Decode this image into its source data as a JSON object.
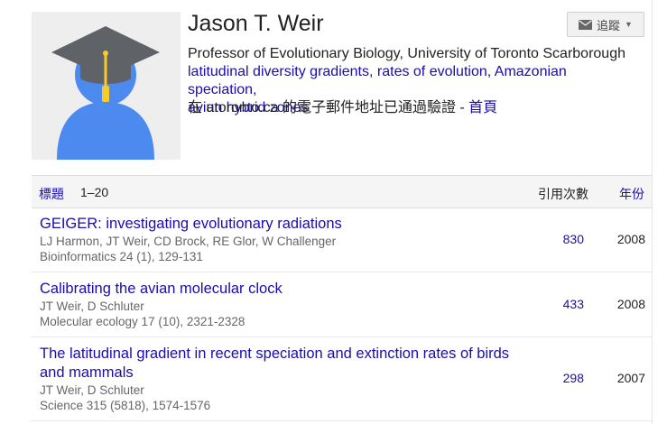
{
  "profile": {
    "name": "Jason T. Weir",
    "affiliation": "Professor of Evolutionary Biology, University of Toronto Scarborough",
    "interests": [
      "latitudinal diversity gradients",
      "rates of evolution",
      "Amazonian speciation",
      "avian hybrid zones"
    ],
    "interest_sep": ", ",
    "verified_text": "在 utoronto.ca 的電子郵件地址已通過驗證 - ",
    "homepage_label": "首頁",
    "follow_label": "追蹤"
  },
  "table": {
    "title_col": "標題",
    "range": "1–20",
    "cites_col": "引用次數",
    "year_col": "年份"
  },
  "papers": [
    {
      "title": "GEIGER: investigating evolutionary radiations",
      "authors": "LJ Harmon, JT Weir, CD Brock, RE Glor, W Challenger",
      "venue": "Bioinformatics 24 (1), 129-131",
      "cites": "830",
      "year": "2008"
    },
    {
      "title": "Calibrating the avian molecular clock",
      "authors": "JT Weir, D Schluter",
      "venue": "Molecular ecology 17 (10), 2321-2328",
      "cites": "433",
      "year": "2008"
    },
    {
      "title": "The latitudinal gradient in recent speciation and extinction rates of birds and mammals",
      "authors": "JT Weir, D Schluter",
      "venue": "Science 315 (5818), 1574-1576",
      "cites": "298",
      "year": "2007"
    }
  ],
  "colors": {
    "link": "#1a0dab",
    "avatar_body": "#4d8af0",
    "cap": "#5f6368",
    "tassel": "#f9cb28"
  }
}
